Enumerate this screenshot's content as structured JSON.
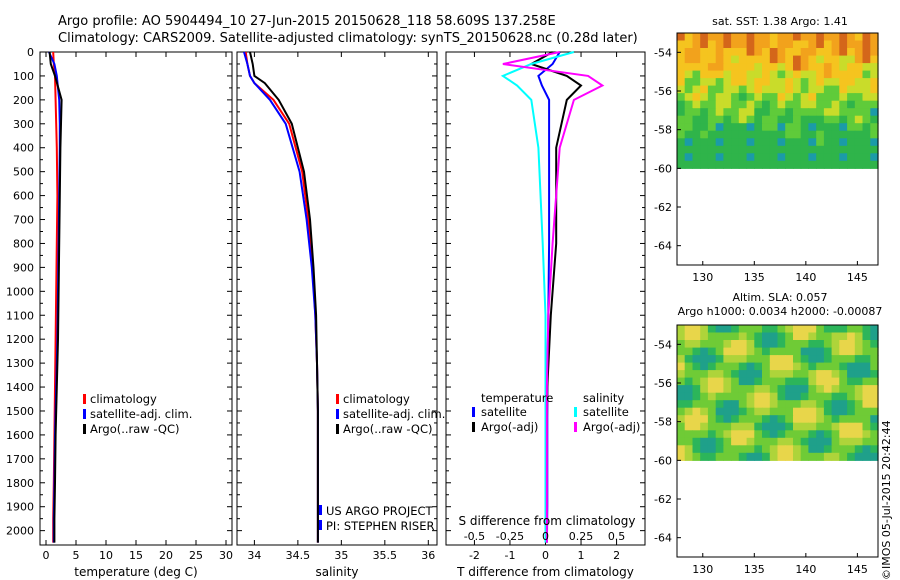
{
  "header": {
    "line1": "Argo profile: AO 5904494_10 27-Jun-2015 20150628_118 58.609S 137.258E",
    "line2": "Climatology: CARS2009. Satellite-adjusted climatology: synTS_20150628.nc (0.28d later)"
  },
  "chart_data": [
    {
      "type": "line",
      "xlabel": "temperature (deg C)",
      "ylabel": "",
      "xlim": [
        -1,
        31
      ],
      "ylim": [
        2060,
        0
      ],
      "xticks": [
        "0",
        "5",
        "10",
        "15",
        "20",
        "25",
        "30"
      ],
      "yticks": [
        "0",
        "100",
        "200",
        "300",
        "400",
        "500",
        "600",
        "700",
        "800",
        "900",
        "1000",
        "1100",
        "1200",
        "1300",
        "1400",
        "1500",
        "1600",
        "1700",
        "1800",
        "1900",
        "2000"
      ],
      "legend": [
        "climatology",
        "satellite-adj. clim.",
        "Argo(..raw -QC)"
      ],
      "series": [
        {
          "name": "climatology",
          "color": "#ff0000",
          "x": [
            1.2,
            1.3,
            1.5,
            1.6,
            1.7,
            1.8,
            1.9,
            1.8,
            1.7,
            1.6,
            1.5,
            1.4,
            1.3,
            1.2,
            1.2
          ],
          "y": [
            0,
            50,
            100,
            200,
            300,
            400,
            600,
            800,
            1000,
            1200,
            1400,
            1600,
            1800,
            1950,
            2050
          ]
        },
        {
          "name": "satellite-adj. clim.",
          "color": "#0000ff",
          "x": [
            0.5,
            1.4,
            1.8,
            2.2,
            2.3,
            2.3,
            2.2,
            2.1,
            2.0,
            1.9,
            1.7,
            1.5,
            1.4,
            1.3,
            1.3
          ],
          "y": [
            0,
            50,
            100,
            200,
            300,
            400,
            600,
            800,
            1000,
            1200,
            1400,
            1600,
            1800,
            1950,
            2050
          ]
        },
        {
          "name": "Argo(..raw -QC)",
          "color": "#000000",
          "x": [
            0.6,
            0.8,
            1.5,
            2.6,
            2.5,
            2.4,
            2.3,
            2.2,
            2.1,
            2.0,
            1.8,
            1.6,
            1.5,
            1.4,
            1.4
          ],
          "y": [
            0,
            50,
            100,
            200,
            300,
            400,
            600,
            800,
            1000,
            1200,
            1400,
            1600,
            1800,
            1950,
            2050
          ]
        }
      ]
    },
    {
      "type": "line",
      "xlabel": "salinity",
      "xlim": [
        33.8,
        36.1
      ],
      "ylim": [
        2060,
        0
      ],
      "xticks": [
        "34",
        "34.5",
        "35",
        "35.5",
        "36"
      ],
      "legend": [
        "climatology",
        "satellite-adj. clim.",
        "Argo(..raw -QC)"
      ],
      "series": [
        {
          "name": "climatology",
          "color": "#ff0000",
          "x": [
            33.9,
            33.92,
            33.95,
            34.0,
            34.22,
            34.4,
            34.55,
            34.62,
            34.67,
            34.7,
            34.72,
            34.73,
            34.73,
            34.73
          ],
          "y": [
            0,
            50,
            100,
            130,
            200,
            300,
            500,
            700,
            900,
            1100,
            1300,
            1500,
            1800,
            2050
          ]
        },
        {
          "name": "satellite-adj. clim.",
          "color": "#0000ff",
          "x": [
            33.88,
            33.92,
            33.95,
            34.0,
            34.18,
            34.36,
            34.52,
            34.6,
            34.66,
            34.7,
            34.72,
            34.73,
            34.73,
            34.73
          ],
          "y": [
            0,
            50,
            100,
            130,
            200,
            300,
            500,
            700,
            900,
            1100,
            1300,
            1500,
            1800,
            2050
          ]
        },
        {
          "name": "Argo(..raw -QC)",
          "color": "#000000",
          "x": [
            33.95,
            33.98,
            34.0,
            34.12,
            34.28,
            34.43,
            34.57,
            34.64,
            34.68,
            34.71,
            34.72,
            34.73,
            34.73,
            34.73
          ],
          "y": [
            0,
            50,
            100,
            130,
            200,
            300,
            500,
            700,
            900,
            1100,
            1300,
            1500,
            1800,
            2050
          ]
        }
      ],
      "annotations": [
        "US ARGO PROJECT",
        "PI: STEPHEN RISER"
      ]
    },
    {
      "type": "line",
      "xlabel": "T difference from climatology",
      "xlabel2": "S difference from climatology",
      "xlim": [
        -2.8,
        2.8
      ],
      "xticks": [
        "-2",
        "-1",
        "0",
        "1",
        "2"
      ],
      "xticks2": [
        "-0.5",
        "-0.25",
        "0",
        "0.25",
        "0.5"
      ],
      "ylim": [
        2060,
        0
      ],
      "legend_headers": [
        "temperature",
        "salinity"
      ],
      "legend": [
        "satellite",
        "Argo(-adj)",
        "satellite",
        "Argo(-adj)"
      ],
      "series": [
        {
          "name": "satellite",
          "group": "temperature",
          "color": "#0000ff",
          "x": [
            0.4,
            0.2,
            -0.2,
            -0.1,
            0.1,
            0.1,
            0.1,
            0.08,
            0.05,
            0.05,
            0.05,
            0.04
          ],
          "y": [
            0,
            50,
            100,
            140,
            200,
            400,
            800,
            1100,
            1400,
            1700,
            1900,
            2050
          ]
        },
        {
          "name": "Argo(-adj)",
          "group": "temperature",
          "color": "#000000",
          "x": [
            0.2,
            -0.4,
            0.6,
            1.0,
            0.6,
            0.3,
            0.3,
            0.15,
            0.05,
            0.03,
            0.03,
            0.03
          ],
          "y": [
            0,
            50,
            100,
            140,
            200,
            400,
            800,
            1100,
            1400,
            1700,
            1900,
            2050
          ]
        },
        {
          "name": "satellite",
          "group": "salinity",
          "color": "#00ffff",
          "x": [
            0.2,
            -0.1,
            -0.3,
            -0.2,
            -0.1,
            -0.05,
            -0.02,
            0,
            0,
            0,
            0,
            0
          ],
          "y": [
            0,
            50,
            100,
            140,
            200,
            400,
            800,
            1100,
            1400,
            1700,
            1900,
            2050
          ]
        },
        {
          "name": "Argo(-adj)",
          "group": "salinity",
          "color": "#ff00ff",
          "x": [
            0.1,
            -0.3,
            0.3,
            0.4,
            0.2,
            0.1,
            0.05,
            0.02,
            0.01,
            0.01,
            0.01,
            0.01
          ],
          "y": [
            0,
            50,
            100,
            140,
            200,
            400,
            800,
            1100,
            1400,
            1700,
            1900,
            2050
          ]
        }
      ]
    },
    {
      "type": "heatmap",
      "title": "sat. SST: 1.38 Argo: 1.41",
      "xlim": [
        127.5,
        147
      ],
      "ylim": [
        -65,
        -53
      ],
      "xticks": [
        "130",
        "135",
        "140",
        "145"
      ],
      "yticks": [
        "-54",
        "-56",
        "-58",
        "-60",
        "-62",
        "-64"
      ]
    },
    {
      "type": "heatmap",
      "title": "Altim. SLA: 0.057",
      "subtitle": "Argo h1000: 0.0034 h2000: -0.00087",
      "xlim": [
        127.5,
        147
      ],
      "ylim": [
        -65,
        -53
      ],
      "xticks": [
        "130",
        "135",
        "140",
        "145"
      ],
      "yticks": [
        "-54",
        "-56",
        "-58",
        "-60",
        "-62",
        "-64"
      ]
    }
  ],
  "footer": {
    "watermark": "©IMOS 05-Jul-2015 20:42:44"
  }
}
